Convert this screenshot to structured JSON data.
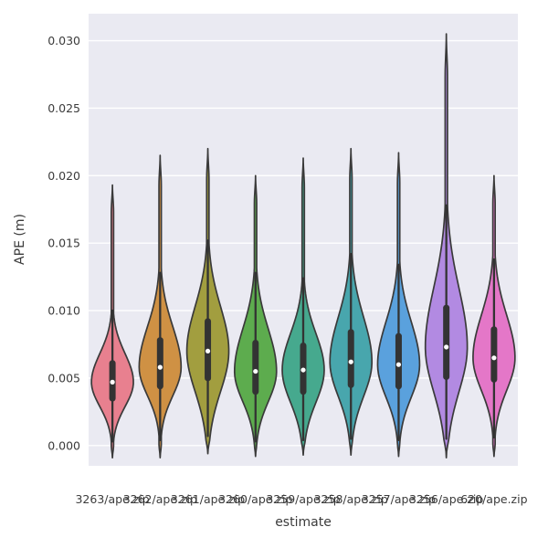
{
  "chart_data": {
    "type": "violin",
    "title": "",
    "xlabel": "estimate",
    "ylabel": "APE (m)",
    "ylim": [
      -0.0015,
      0.032
    ],
    "yticks": [
      0.0,
      0.005,
      0.01,
      0.015,
      0.02,
      0.025,
      0.03
    ],
    "ytick_labels": [
      "0.000",
      "0.005",
      "0.010",
      "0.015",
      "0.020",
      "0.025",
      "0.030"
    ],
    "categories": [
      "3263/ape.zip",
      "3262/ape.zip",
      "3261/ape.zip",
      "3260/ape.zip",
      "3259/ape.zip",
      "3258/ape.zip",
      "3257/ape.zip",
      "3256/ape.zip",
      "620/ape.zip"
    ],
    "grid": true,
    "legend": false,
    "plot_background": "#eaeaf2",
    "gridline_color": "#ffffff",
    "outline_color": "#3a3a3a",
    "inner_box_color": "#333333",
    "median_dot_color": "#ffffff",
    "tick_label_color": "#3b3b3b",
    "violins": [
      {
        "label": "3263/ape.zip",
        "color": "#e8808f",
        "min": -0.0009,
        "max": 0.0193,
        "q1": 0.0035,
        "median": 0.0047,
        "q3": 0.0061,
        "whisker_low": 0.0003,
        "whisker_high": 0.01
      },
      {
        "label": "3262/ape.zip",
        "color": "#cf9144",
        "min": -0.0009,
        "max": 0.0215,
        "q1": 0.0044,
        "median": 0.0058,
        "q3": 0.0078,
        "whisker_low": 0.0004,
        "whisker_high": 0.0128
      },
      {
        "label": "3261/ape.zip",
        "color": "#a29e3f",
        "min": -0.0006,
        "max": 0.022,
        "q1": 0.005,
        "median": 0.007,
        "q3": 0.0092,
        "whisker_low": 0.0007,
        "whisker_high": 0.0152
      },
      {
        "label": "3260/ape.zip",
        "color": "#5dac4e",
        "min": -0.0008,
        "max": 0.02,
        "q1": 0.004,
        "median": 0.0055,
        "q3": 0.0076,
        "whisker_low": 0.0003,
        "whisker_high": 0.0128
      },
      {
        "label": "3259/ape.zip",
        "color": "#46a98e",
        "min": -0.0007,
        "max": 0.0213,
        "q1": 0.004,
        "median": 0.0056,
        "q3": 0.0074,
        "whisker_low": 0.0004,
        "whisker_high": 0.0124
      },
      {
        "label": "3258/ape.zip",
        "color": "#48a6ad",
        "min": -0.0007,
        "max": 0.022,
        "q1": 0.0045,
        "median": 0.0062,
        "q3": 0.0084,
        "whisker_low": 0.0005,
        "whisker_high": 0.0142
      },
      {
        "label": "3257/ape.zip",
        "color": "#5aa1dd",
        "min": -0.0008,
        "max": 0.0217,
        "q1": 0.0044,
        "median": 0.006,
        "q3": 0.0081,
        "whisker_low": 0.0004,
        "whisker_high": 0.0134
      },
      {
        "label": "3256/ape.zip",
        "color": "#b28ae2",
        "min": -0.0009,
        "max": 0.0305,
        "q1": 0.0051,
        "median": 0.0073,
        "q3": 0.0102,
        "whisker_low": 0.0005,
        "whisker_high": 0.0178
      },
      {
        "label": "620/ape.zip",
        "color": "#e477c8",
        "min": -0.0008,
        "max": 0.02,
        "q1": 0.0049,
        "median": 0.0065,
        "q3": 0.0086,
        "whisker_low": 0.0006,
        "whisker_high": 0.0138
      }
    ]
  }
}
